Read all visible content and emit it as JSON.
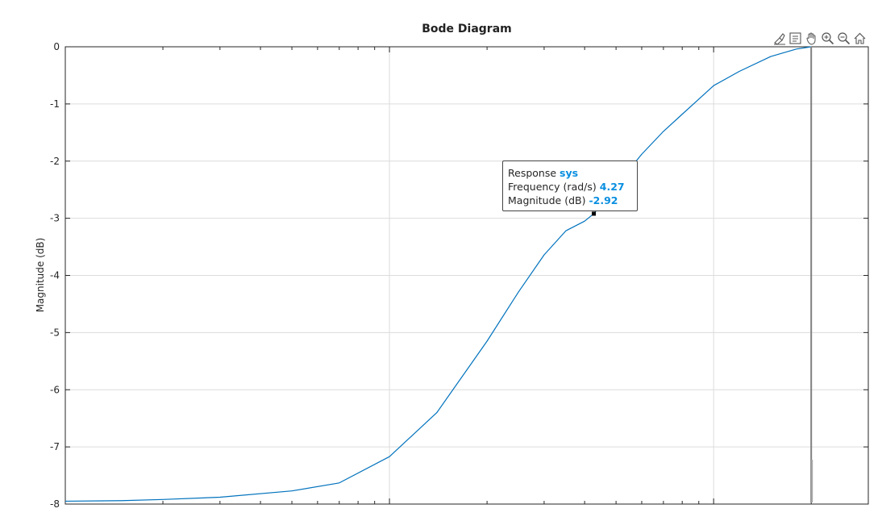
{
  "chart_data": {
    "type": "line",
    "title": "Bode Diagram",
    "xlabel": "",
    "ylabel": "Magnitude (dB)",
    "x_scale": "log",
    "xlim": [
      0.1,
      30
    ],
    "ylim": [
      -8,
      0
    ],
    "grid": true,
    "yticks": [
      0,
      -1,
      -2,
      -3,
      -4,
      -5,
      -6,
      -7,
      -8
    ],
    "series": [
      {
        "name": "sys",
        "color": "#0072bd",
        "x": [
          0.1,
          0.15,
          0.2,
          0.3,
          0.5,
          0.7,
          1,
          1.4,
          2,
          2.5,
          3,
          3.5,
          4,
          4.27,
          5,
          6,
          7,
          8,
          10,
          12,
          15,
          18,
          20
        ],
        "y": [
          -7.95,
          -7.94,
          -7.92,
          -7.88,
          -7.77,
          -7.63,
          -7.17,
          -6.4,
          -5.15,
          -4.29,
          -3.64,
          -3.22,
          -3.05,
          -2.92,
          -2.43,
          -1.88,
          -1.48,
          -1.18,
          -0.68,
          -0.43,
          -0.17,
          -0.04,
          0.0
        ]
      }
    ],
    "cursor_line": {
      "x": 20,
      "color": "#808080"
    },
    "datatip": {
      "marker": {
        "x": 4.27,
        "y": -2.92
      },
      "response_label": "Response",
      "response_value": "sys",
      "frequency_label": "Frequency (rad/s)",
      "frequency_value": "4.27",
      "magnitude_label": "Magnitude (dB)",
      "magnitude_value": "-2.92"
    }
  },
  "toolbar": {
    "icons": [
      "brush-icon",
      "data-tip-icon",
      "pan-icon",
      "zoom-in-icon",
      "zoom-out-icon",
      "home-icon"
    ]
  }
}
